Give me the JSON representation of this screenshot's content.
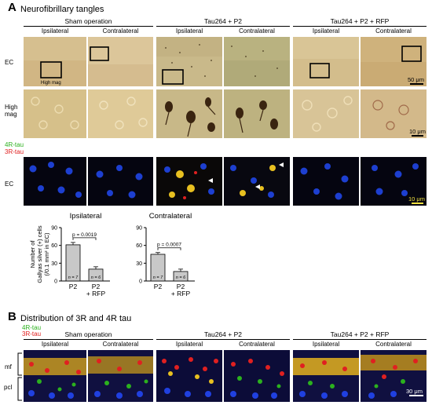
{
  "panel_a": {
    "letter": "A",
    "title": "Neurofibrillary tangles",
    "groups": [
      "Sham operation",
      "Tau264 + P2",
      "Tau264 + P2 + RFP"
    ],
    "sides": [
      "Ipsilateral",
      "Contralateral"
    ],
    "rows": {
      "ec": "EC",
      "high_mag_1": "High",
      "high_mag_2": "mag",
      "ec2": "EC"
    },
    "high_mag_box_label": "High mag",
    "legend": {
      "green": "4R-tau",
      "red": "3R-tau"
    },
    "scale_bars": {
      "row1": "50 μm",
      "row2": "10 μm",
      "row3": "10 μm"
    }
  },
  "panel_b": {
    "letter": "B",
    "title": "Distribution of 3R and 4R tau",
    "legend": {
      "green": "4R-tau",
      "red": "3R-tau"
    },
    "rows": {
      "mf": "mf",
      "pcl": "pcl"
    },
    "scale_bar": "30 μm"
  },
  "colors": {
    "green": "#2bb11e",
    "red": "#e02020",
    "bar_fill": "#c8c8c8"
  },
  "chart_data": [
    {
      "type": "bar",
      "title": "Ipsilateral",
      "categories": [
        "P2",
        "P2\n+ RFP"
      ],
      "category_lines": [
        [
          "P2"
        ],
        [
          "P2",
          "+ RFP"
        ]
      ],
      "values": [
        61,
        20
      ],
      "errors": [
        4,
        4
      ],
      "n_labels": [
        "n = 7",
        "n = 6"
      ],
      "ylim": [
        0,
        90
      ],
      "yticks": [
        0,
        30,
        60,
        90
      ],
      "ylabel_lines": [
        "Number of",
        "Gallyas silver (+) cells",
        "(/0.1 mm² in EC)"
      ],
      "significance": "p = 0.0019"
    },
    {
      "type": "bar",
      "title": "Contralateral",
      "categories": [
        "P2",
        "P2\n+ RFP"
      ],
      "category_lines": [
        [
          "P2"
        ],
        [
          "P2",
          "+ RFP"
        ]
      ],
      "values": [
        45,
        16
      ],
      "errors": [
        3,
        4
      ],
      "n_labels": [
        "n = 7",
        "n = 6"
      ],
      "ylim": [
        0,
        90
      ],
      "yticks": [
        0,
        30,
        60,
        90
      ],
      "significance": "p = 0.0007"
    }
  ]
}
